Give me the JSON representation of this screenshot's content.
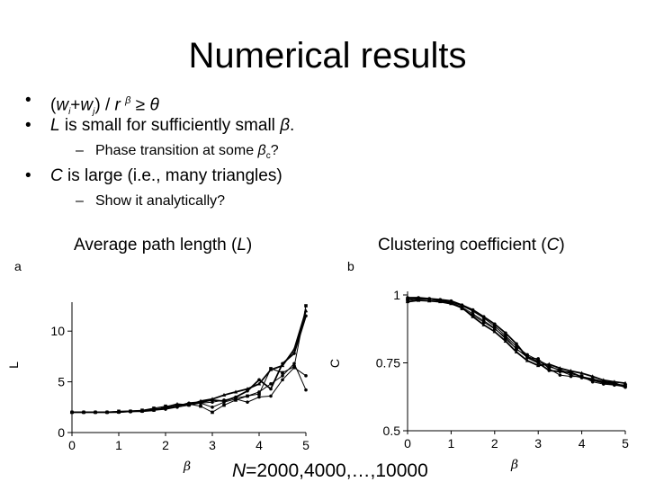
{
  "slide": {
    "title": "Numerical results",
    "bullets": {
      "b1": {
        "open": "(",
        "w": "w",
        "i": "i",
        "plus": "+",
        "w2": "w",
        "j": "j",
        "close": ") / ",
        "r": "r",
        "beta": "β",
        "geq": " ≥ ",
        "theta": "θ"
      },
      "b2": {
        "L": "L",
        "rest": " is small for sufficiently small ",
        "beta": "β",
        "end": "."
      },
      "b2sub": {
        "pre": "Phase transition at some ",
        "beta": "β",
        "c": "c",
        "end": "?"
      },
      "b3": {
        "C": "C",
        "rest": " is large (i.e., many triangles)"
      },
      "b3sub": "Show it analytically?"
    },
    "footer": {
      "N": "N",
      "rest": "=2000,4000,…,10000"
    }
  },
  "chart_data": [
    {
      "type": "line",
      "panel_label": "a",
      "title_pre": "Average path length (",
      "title_var": "L",
      "title_post": ")",
      "xlabel": "β",
      "ylabel": "L",
      "xlim": [
        0,
        5
      ],
      "ylim": [
        0,
        12.5
      ],
      "xticks": [
        0,
        1,
        2,
        3,
        4,
        5
      ],
      "yticks": [
        0,
        5,
        10
      ],
      "x": [
        0,
        0.25,
        0.5,
        0.75,
        1,
        1.25,
        1.5,
        1.75,
        2,
        2.25,
        2.5,
        2.75,
        3,
        3.25,
        3.5,
        3.75,
        4,
        4.25,
        4.5,
        4.75,
        5
      ],
      "series": [
        {
          "values": [
            2,
            2,
            2,
            2,
            2.05,
            2.1,
            2.1,
            2.2,
            2.3,
            2.5,
            2.7,
            2.9,
            3.0,
            3.2,
            3.4,
            3.6,
            4.0,
            4.8,
            5.6,
            6.8,
            4.2
          ]
        },
        {
          "values": [
            2,
            2,
            2,
            2,
            2.1,
            2.1,
            2.2,
            2.4,
            2.6,
            2.7,
            2.8,
            2.6,
            2.0,
            2.7,
            3.2,
            3.6,
            3.8,
            6.3,
            5.9,
            6.5,
            12.5
          ]
        },
        {
          "values": [
            2,
            2,
            2,
            2,
            2.05,
            2.1,
            2.15,
            2.3,
            2.4,
            2.6,
            2.9,
            3.0,
            3.2,
            3.1,
            3.5,
            4.1,
            5.2,
            4.3,
            6.8,
            7.8,
            11.5
          ]
        },
        {
          "values": [
            2,
            2,
            2,
            2,
            2.0,
            2.1,
            2.1,
            2.2,
            2.5,
            2.8,
            2.7,
            3.1,
            3.3,
            3.7,
            4.0,
            4.3,
            4.8,
            6.2,
            6.6,
            8.2,
            12.0
          ]
        },
        {
          "values": [
            2,
            2,
            2,
            2,
            2.0,
            2.05,
            2.1,
            2.2,
            2.4,
            2.6,
            2.8,
            2.9,
            2.5,
            3.0,
            3.3,
            3.0,
            3.5,
            3.6,
            5.2,
            6.4,
            5.6
          ]
        }
      ]
    },
    {
      "type": "line",
      "panel_label": "b",
      "title_pre": "Clustering coefficient (",
      "title_var": "C",
      "title_post": ")",
      "xlabel": "β",
      "ylabel": "C",
      "xlim": [
        0,
        5
      ],
      "ylim": [
        0.5,
        1
      ],
      "xticks": [
        0,
        1,
        2,
        3,
        4,
        5
      ],
      "yticks": [
        0.5,
        0.75,
        1
      ],
      "x": [
        0,
        0.25,
        0.5,
        0.75,
        1,
        1.25,
        1.5,
        1.75,
        2,
        2.25,
        2.5,
        2.75,
        3,
        3.25,
        3.5,
        3.75,
        4,
        4.25,
        4.5,
        4.75,
        5
      ],
      "series": [
        {
          "values": [
            0.985,
            0.988,
            0.986,
            0.982,
            0.975,
            0.96,
            0.94,
            0.915,
            0.885,
            0.85,
            0.81,
            0.78,
            0.76,
            0.74,
            0.72,
            0.705,
            0.695,
            0.685,
            0.675,
            0.67,
            0.665
          ]
        },
        {
          "values": [
            0.98,
            0.984,
            0.984,
            0.978,
            0.97,
            0.95,
            0.925,
            0.9,
            0.875,
            0.845,
            0.8,
            0.775,
            0.755,
            0.735,
            0.725,
            0.71,
            0.7,
            0.688,
            0.678,
            0.672,
            0.668
          ]
        },
        {
          "values": [
            0.99,
            0.99,
            0.986,
            0.983,
            0.978,
            0.963,
            0.945,
            0.92,
            0.893,
            0.86,
            0.82,
            0.77,
            0.75,
            0.722,
            0.718,
            0.715,
            0.698,
            0.69,
            0.68,
            0.676,
            0.66
          ]
        },
        {
          "values": [
            0.975,
            0.98,
            0.978,
            0.975,
            0.968,
            0.953,
            0.92,
            0.89,
            0.865,
            0.83,
            0.79,
            0.758,
            0.74,
            0.745,
            0.73,
            0.72,
            0.712,
            0.7,
            0.686,
            0.68,
            0.675
          ]
        },
        {
          "values": [
            0.985,
            0.986,
            0.986,
            0.98,
            0.972,
            0.955,
            0.93,
            0.905,
            0.878,
            0.838,
            0.802,
            0.77,
            0.765,
            0.728,
            0.705,
            0.7,
            0.7,
            0.68,
            0.672,
            0.668,
            0.662
          ]
        }
      ]
    }
  ]
}
